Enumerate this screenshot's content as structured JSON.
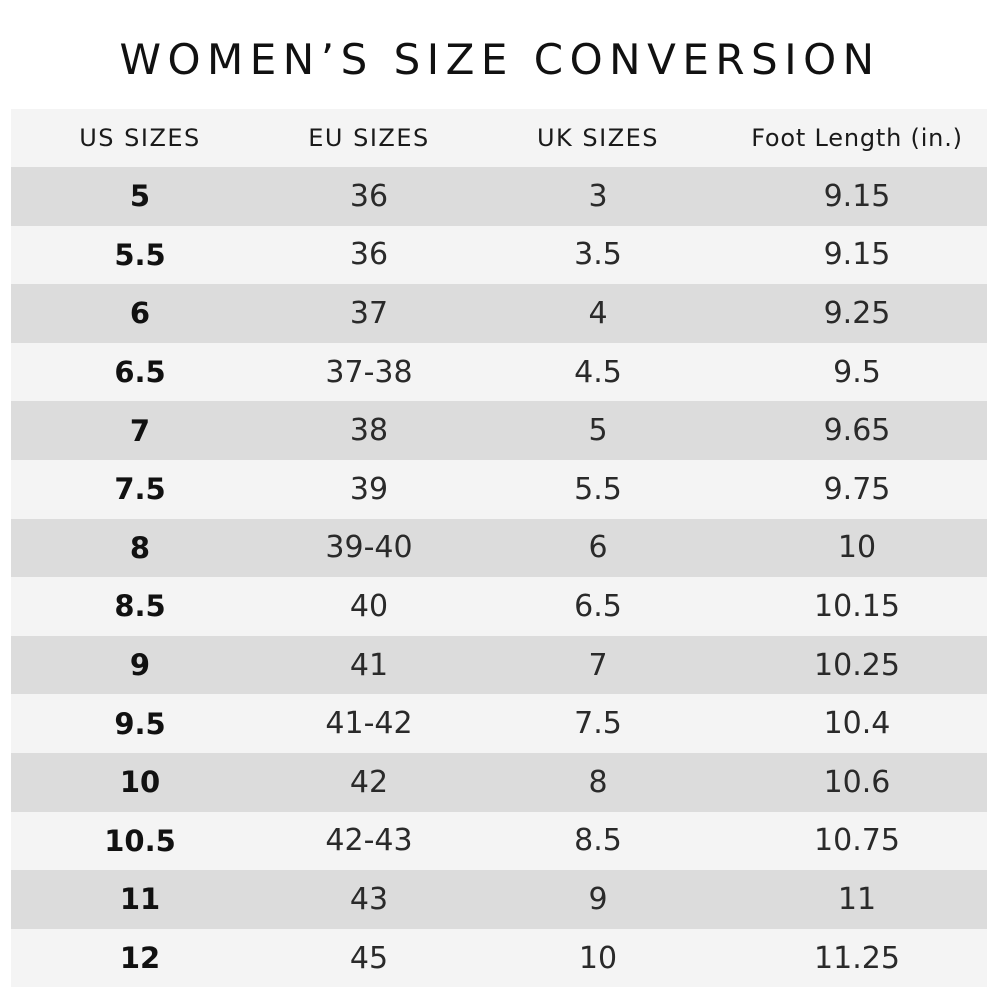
{
  "title": "WOMEN’S SIZE CONVERSION",
  "table": {
    "headers": [
      "US SIZES",
      "EU SIZES",
      "UK SIZES",
      "Foot Length (in.)"
    ],
    "rows": [
      [
        "5",
        "36",
        "3",
        "9.15"
      ],
      [
        "5.5",
        "36",
        "3.5",
        "9.15"
      ],
      [
        "6",
        "37",
        "4",
        "9.25"
      ],
      [
        "6.5",
        "37-38",
        "4.5",
        "9.5"
      ],
      [
        "7",
        "38",
        "5",
        "9.65"
      ],
      [
        "7.5",
        "39",
        "5.5",
        "9.75"
      ],
      [
        "8",
        "39-40",
        "6",
        "10"
      ],
      [
        "8.5",
        "40",
        "6.5",
        "10.15"
      ],
      [
        "9",
        "41",
        "7",
        "10.25"
      ],
      [
        "9.5",
        "41-42",
        "7.5",
        "10.4"
      ],
      [
        "10",
        "42",
        "8",
        "10.6"
      ],
      [
        "10.5",
        "42-43",
        "8.5",
        "10.75"
      ],
      [
        "11",
        "43",
        "9",
        "11"
      ],
      [
        "12",
        "45",
        "10",
        "11.25"
      ]
    ]
  },
  "colors": {
    "shade_dark": "#dcdcdc",
    "shade_light": "#f4f4f4",
    "text": "#111111"
  }
}
